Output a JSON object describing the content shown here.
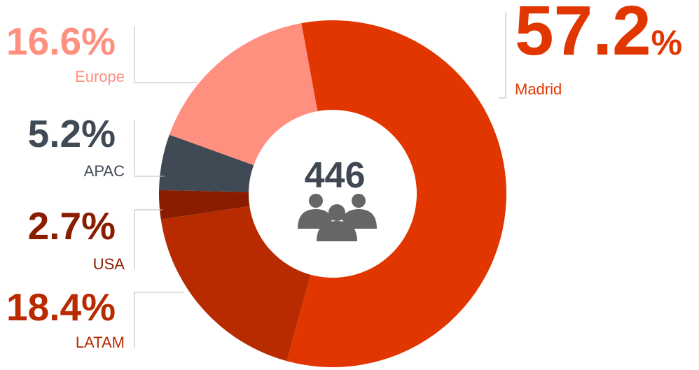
{
  "chart_data": {
    "type": "donut",
    "categories": [
      "Madrid",
      "LATAM",
      "USA",
      "APAC",
      "Europe"
    ],
    "values": [
      57.2,
      18.4,
      2.7,
      5.2,
      16.6
    ],
    "value_labels": [
      "57.2%",
      "18.4%",
      "2.7%",
      "5.2%",
      "16.6%"
    ],
    "colors": [
      "#e23600",
      "#b82a00",
      "#8a1c00",
      "#404a55",
      "#ff9080"
    ],
    "center_value": 446
  }
}
